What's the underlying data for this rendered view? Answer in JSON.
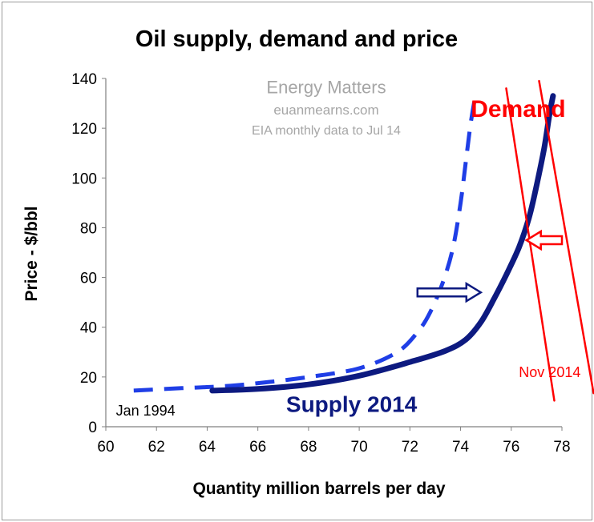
{
  "chart_data": {
    "type": "line",
    "title": "Oil supply, demand and price",
    "xlabel": "Quantity million barrels per day",
    "ylabel": "Price - $/bbl",
    "xlim": [
      60,
      78
    ],
    "ylim": [
      0,
      140
    ],
    "x_ticks": [
      60,
      62,
      64,
      66,
      68,
      70,
      72,
      74,
      76,
      78
    ],
    "y_ticks": [
      0,
      20,
      40,
      60,
      80,
      100,
      120,
      140
    ],
    "grid": false,
    "legend": "none",
    "series": [
      {
        "name": "",
        "style": "dashed",
        "color": "#1f3ee6",
        "points": [
          [
            61.1,
            14.5
          ],
          [
            63,
            15.5
          ],
          [
            64.5,
            16.2
          ],
          [
            66,
            17.5
          ],
          [
            68,
            20
          ],
          [
            70,
            23.5
          ],
          [
            71.5,
            30
          ],
          [
            72.3,
            38
          ],
          [
            72.8,
            46
          ],
          [
            73.3,
            58
          ],
          [
            73.7,
            72
          ],
          [
            74.0,
            90
          ],
          [
            74.2,
            106
          ],
          [
            74.4,
            122
          ],
          [
            74.6,
            134
          ]
        ]
      },
      {
        "name": "Supply 2014",
        "style": "solid",
        "color": "#0d1a80",
        "points": [
          [
            64.2,
            14.5
          ],
          [
            66,
            15.2
          ],
          [
            68,
            17
          ],
          [
            70,
            20.5
          ],
          [
            72,
            26
          ],
          [
            73.4,
            30.5
          ],
          [
            74.2,
            35
          ],
          [
            74.8,
            42
          ],
          [
            75.3,
            51
          ],
          [
            75.8,
            61
          ],
          [
            76.3,
            72
          ],
          [
            76.7,
            84
          ],
          [
            77.0,
            97
          ],
          [
            77.3,
            112
          ],
          [
            77.5,
            125
          ],
          [
            77.65,
            133
          ]
        ]
      },
      {
        "name": "",
        "style": "solid",
        "color": "#ff0000",
        "points": [
          [
            75.8,
            136
          ],
          [
            77.7,
            10.5
          ]
        ]
      },
      {
        "name": "",
        "style": "solid",
        "color": "#ff0000",
        "points": [
          [
            77.1,
            139
          ],
          [
            79.25,
            13.5
          ]
        ]
      }
    ],
    "annotations": [
      {
        "text": "Energy Matters",
        "x": 68.7,
        "y": 134
      },
      {
        "text": "euanmearns.com",
        "x": 68.7,
        "y": 125.5
      },
      {
        "text": "EIA monthly data to Jul 14",
        "x": 68.7,
        "y": 117.5
      },
      {
        "text": "Demand",
        "x": 74.4,
        "y": 124.5
      },
      {
        "text": "Supply 2014",
        "x": 69.7,
        "y": 6
      },
      {
        "text": "Nov 2014",
        "x": 76.3,
        "y": 20
      },
      {
        "text": "Jan 1994",
        "x": 60.4,
        "y": 4.5
      }
    ],
    "arrows": [
      {
        "direction": "right",
        "from": [
          72.3,
          54
        ],
        "to": [
          74.8,
          54
        ],
        "color": "#0d1a80"
      },
      {
        "direction": "left",
        "from": [
          78.0,
          75
        ],
        "to": [
          76.6,
          75
        ],
        "color": "#ff0000"
      }
    ]
  }
}
